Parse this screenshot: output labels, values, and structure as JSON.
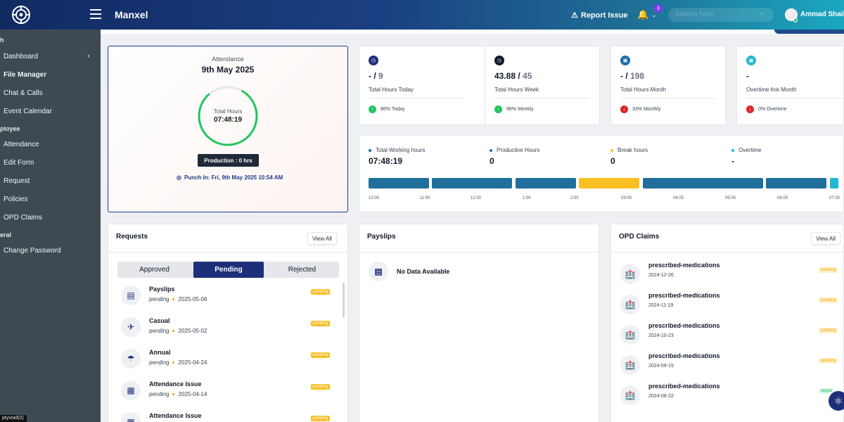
{
  "header": {
    "app_title": "Manxel",
    "report_issue": "Report Issue",
    "notification_count": "3",
    "search_placeholder": "Search here",
    "user_name": "Ammad Shaikh"
  },
  "sidebar": {
    "sections": [
      {
        "label": "h"
      },
      {
        "label": "ployee"
      },
      {
        "label": "eral"
      }
    ],
    "items": [
      {
        "label": "Dashboard"
      },
      {
        "label": "File Manager"
      },
      {
        "label": "Chat & Calls"
      },
      {
        "label": "Event Calendar"
      },
      {
        "label": "Attendance"
      },
      {
        "label": "Edit Form"
      },
      {
        "label": "Request"
      },
      {
        "label": "Policies"
      },
      {
        "label": "OPD Claims"
      },
      {
        "label": "Change Password"
      }
    ],
    "dev_tag": "ptyvoid(0)"
  },
  "attendance": {
    "label": "Attendance",
    "date": "9th May 2025",
    "ring_label": "Total Hours",
    "ring_value": "07:48:19",
    "production": "Production : 0 hrs",
    "punch_in": "Punch In:  Fri, 9th May 2025 10:54 AM"
  },
  "stats": [
    {
      "value": "- / ",
      "of": "9",
      "label": "Total Hours Today",
      "trend": "86% Today",
      "icon_color": "#1e2f7a",
      "trend_color": "#22c55e"
    },
    {
      "value": "43.88 / ",
      "of": "45",
      "label": "Total Hours Week",
      "trend": "98% Weekly",
      "icon_color": "#111827",
      "trend_color": "#22c55e"
    },
    {
      "value": "- / ",
      "of": "198",
      "label": "Total Hours Month",
      "trend": "33% Monthly",
      "icon_color": "#1d6fa8",
      "trend_color": "#dc2626"
    },
    {
      "value": "-",
      "of": "",
      "label": "Overtime this Month",
      "trend": "0% Overtime",
      "icon_color": "#22b8cf",
      "trend_color": "#dc2626"
    }
  ],
  "work": {
    "columns": [
      {
        "label": "Total Working hours",
        "value": "07:48:19",
        "color": "#1f6f9a"
      },
      {
        "label": "Productive Hours",
        "value": "0",
        "color": "#1f6f9a"
      },
      {
        "label": "Break hours",
        "value": "0",
        "color": "#fbbf24"
      },
      {
        "label": "Overtime",
        "value": "-",
        "color": "#22b8cf"
      }
    ],
    "ticks": [
      "10:00",
      "11:00",
      "12:00",
      "1:00",
      "2:00",
      "03:00",
      "04:00",
      "05:00",
      "06:00",
      "07:00"
    ]
  },
  "requests": {
    "title": "Requests",
    "view_all": "View All",
    "tabs": [
      "Approved",
      "Pending",
      "Rejected"
    ],
    "items": [
      {
        "name": "Payslips",
        "status": "pending",
        "date": "2025-05-06",
        "badge": "pending",
        "icon": "📄"
      },
      {
        "name": "Casual",
        "status": "pending",
        "date": "2025-05-02",
        "badge": "pending",
        "icon": "🚶"
      },
      {
        "name": "Annual",
        "status": "pending",
        "date": "2025-04-24",
        "badge": "pending",
        "icon": "⛱"
      },
      {
        "name": "Attendance Issue",
        "status": "pending",
        "date": "2025-04-14",
        "badge": "pending",
        "icon": "📅"
      },
      {
        "name": "Attendance Issue",
        "status": "",
        "date": "",
        "badge": "pending",
        "icon": "📅"
      }
    ]
  },
  "payslips": {
    "title": "Payslips",
    "no_data": "No Data Available"
  },
  "opd": {
    "title": "OPD Claims",
    "view_all": "View All",
    "items": [
      {
        "name": "prescribed-medications",
        "date": "2024-12-26",
        "badge": "pending"
      },
      {
        "name": "prescribed-medications",
        "date": "2024-11-19",
        "badge": "pending"
      },
      {
        "name": "prescribed-medications",
        "date": "2024-10-23",
        "badge": "pending"
      },
      {
        "name": "prescribed-medications",
        "date": "2024-09-19",
        "badge": "pending"
      },
      {
        "name": "prescribed-medications",
        "date": "2024-08-22",
        "badge": "Appro"
      }
    ]
  }
}
